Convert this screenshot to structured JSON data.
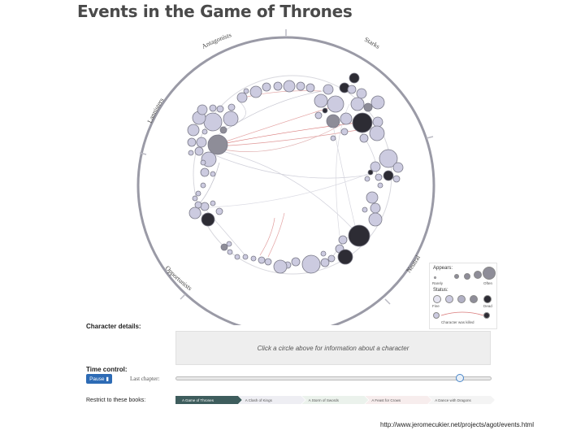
{
  "title": "Events in the Game of Thrones",
  "ring_labels": {
    "antagonists": "Antagonists",
    "starks": "Starks",
    "lannisters": "Lannisters",
    "neutral": "Neutral",
    "opportunists": "Opportunists"
  },
  "legend": {
    "appears_label": "Appears:",
    "appears_min": "Rarely",
    "appears_max": "Often",
    "status_label": "Status:",
    "status_min": "Fine",
    "status_max": "Dead",
    "killed_label": "Character was killed"
  },
  "details": {
    "label": "Character details:",
    "placeholder": "Click a circle above for information about a character"
  },
  "time_control": {
    "label": "Time control:",
    "pause_label": "Pause ▮",
    "last_chapter_label": "Last chapter:",
    "progress": 0.9
  },
  "restrict": {
    "label": "Restrict to these books:",
    "books": [
      "A Game of Thrones",
      "A Clash of Kings",
      "A Storm of Swords",
      "A Feast for Crows",
      "A Dance with Dragons"
    ],
    "active_book_color": "#3e5d5d"
  },
  "source_url": "http://www.jeromecukier.net/projects/agot/events.html",
  "colors": {
    "light_node": "#cccbe0",
    "mid_node": "#8e8d98",
    "dark_node": "#2d2c34",
    "ring": "#9a9aa6",
    "link_red": "#d97a7a",
    "slider_blue": "#2d6bb5"
  }
}
